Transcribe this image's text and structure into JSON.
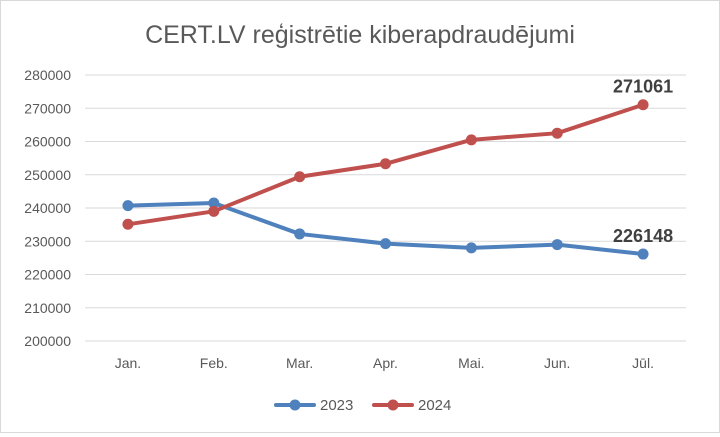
{
  "chart_data": {
    "type": "line",
    "title": "CERT.LV reģistrētie kiberapdraudējumi",
    "categories": [
      "Jan.",
      "Feb.",
      "Mar.",
      "Apr.",
      "Mai.",
      "Jun.",
      "Jūl."
    ],
    "ylim": [
      200000,
      280000
    ],
    "yticks": [
      200000,
      210000,
      220000,
      230000,
      240000,
      250000,
      260000,
      270000,
      280000
    ],
    "grid": true,
    "legend_position": "bottom",
    "series": [
      {
        "name": "2023",
        "color": "#4f81bd",
        "values": [
          240700,
          241500,
          232200,
          229300,
          228000,
          229000,
          226148
        ],
        "last_label": "226148"
      },
      {
        "name": "2024",
        "color": "#c0504d",
        "values": [
          235100,
          239000,
          249400,
          253300,
          260500,
          262500,
          271061
        ],
        "last_label": "271061"
      }
    ]
  }
}
